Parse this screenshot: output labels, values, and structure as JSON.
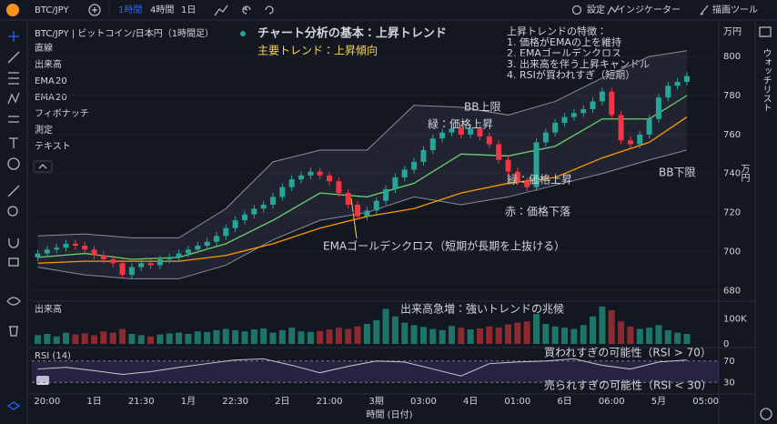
{
  "toolbar": {
    "symbol": "BTC/JPY",
    "intervals": [
      "1時間",
      "4時間",
      "1日"
    ],
    "active_interval": 0,
    "settings": "設定",
    "indicators": "インジケーター",
    "drawing_tools": "描画ツール"
  },
  "sidebar": {
    "title": "ウォッチリスト"
  },
  "object_list": {
    "items_top": [
      "直線",
      "出来高"
    ],
    "ema": [
      {
        "label": "EMA",
        "param": "20",
        "color": "#66d36e"
      },
      {
        "label": "EMA",
        "param": "20",
        "color": "#ff9800"
      }
    ],
    "items_bottom": [
      "フィボナッチ",
      "測定",
      "テキスト"
    ]
  },
  "chart_data": [
    {
      "type": "candlestick",
      "symbol_label": "BTC/JPY | ビットコイン/日本円（1時間足）",
      "title": "チャート分析の基本：上昇トレンド",
      "subtitle": "主要トレンド：上昇傾向",
      "notes": {
        "title": "上昇トレンドの特徴：",
        "items": [
          "1. 価格がEMAの上を維持",
          "2. EMAゴールデンクロス",
          "3. 出来高を伴う上昇キャンドル",
          "4. RSIが買われすぎ（短期）"
        ]
      },
      "categories": [
        null,
        "20:00",
        null,
        null,
        null,
        null,
        "1日",
        null,
        null,
        null,
        null,
        "21:30",
        null,
        null,
        null,
        null,
        "1月",
        null,
        null,
        null,
        null,
        "22:30",
        null,
        null,
        null,
        null,
        "2日",
        null,
        null,
        null,
        null,
        "21:00",
        null,
        null,
        null,
        null,
        "3期",
        null,
        null,
        null,
        null,
        "03:00",
        null,
        null,
        null,
        null,
        "4日",
        null,
        null,
        null,
        null,
        "01:00",
        null,
        null,
        null,
        null,
        "6日",
        null,
        null,
        null,
        null,
        "06:00",
        null,
        null,
        null,
        null,
        "5月",
        null,
        null,
        null,
        null,
        "05:00"
      ],
      "open": [
        697,
        699,
        701,
        702,
        704,
        703,
        701,
        698,
        696,
        694,
        688,
        692,
        694,
        693,
        696,
        697,
        699,
        701,
        703,
        705,
        708,
        712,
        716,
        719,
        722,
        724,
        728,
        733,
        737,
        739,
        741,
        739,
        736,
        730,
        724,
        718,
        721,
        726,
        732,
        738,
        742,
        746,
        752,
        758,
        761,
        763,
        760,
        763,
        759,
        755,
        747,
        741,
        736,
        733,
        756,
        761,
        766,
        769,
        771,
        773,
        777,
        782,
        770,
        757,
        755,
        760,
        768,
        779,
        785,
        787,
        null,
        null
      ],
      "high": [
        701,
        703,
        704,
        706,
        706,
        705,
        703,
        700,
        698,
        696,
        694,
        696,
        696,
        698,
        699,
        701,
        703,
        705,
        707,
        710,
        714,
        718,
        721,
        724,
        726,
        730,
        735,
        739,
        741,
        743,
        743,
        741,
        738,
        732,
        726,
        723,
        728,
        734,
        740,
        744,
        748,
        754,
        760,
        763,
        765,
        765,
        765,
        765,
        761,
        757,
        749,
        743,
        738,
        758,
        763,
        768,
        771,
        773,
        775,
        779,
        784,
        784,
        772,
        759,
        762,
        770,
        781,
        787,
        789,
        792,
        null,
        null
      ],
      "low": [
        695,
        697,
        699,
        700,
        701,
        699,
        696,
        694,
        692,
        686,
        686,
        690,
        691,
        691,
        694,
        695,
        697,
        699,
        701,
        703,
        706,
        710,
        714,
        717,
        720,
        722,
        726,
        731,
        735,
        737,
        737,
        734,
        728,
        722,
        716,
        716,
        719,
        724,
        730,
        736,
        740,
        744,
        750,
        756,
        759,
        758,
        758,
        757,
        753,
        745,
        739,
        734,
        731,
        731,
        754,
        759,
        764,
        767,
        769,
        771,
        775,
        768,
        755,
        753,
        753,
        758,
        766,
        777,
        783,
        785,
        null,
        null
      ],
      "close": [
        699,
        701,
        702,
        704,
        703,
        701,
        698,
        696,
        694,
        688,
        692,
        694,
        693,
        696,
        697,
        699,
        701,
        703,
        705,
        708,
        712,
        716,
        719,
        722,
        724,
        728,
        733,
        737,
        739,
        741,
        739,
        736,
        730,
        724,
        718,
        721,
        726,
        732,
        738,
        742,
        746,
        752,
        758,
        761,
        763,
        760,
        763,
        759,
        755,
        747,
        741,
        736,
        733,
        756,
        761,
        766,
        769,
        771,
        773,
        777,
        782,
        770,
        757,
        755,
        760,
        768,
        779,
        785,
        787,
        790,
        null,
        null
      ],
      "up_color": "#26a69a",
      "down_color": "#f23645",
      "bands": {
        "x": [
          0,
          5,
          10,
          15,
          20,
          25,
          30,
          35,
          40,
          45,
          50,
          55,
          60,
          65,
          69
        ],
        "upper": [
          708,
          709,
          707,
          707,
          722,
          746,
          752,
          752,
          775,
          774,
          770,
          777,
          789,
          800,
          803
        ],
        "lower": [
          692,
          688,
          686,
          686,
          693,
          706,
          716,
          720,
          728,
          724,
          728,
          734,
          740,
          747,
          752
        ],
        "color": "#8a8d96"
      },
      "overlays": [
        {
          "x": [
            0,
            5,
            10,
            15,
            20,
            25,
            30,
            35,
            40,
            45,
            50,
            55,
            60,
            65,
            69
          ],
          "values": [
            697,
            699,
            696,
            697,
            704,
            716,
            730,
            728,
            735,
            750,
            749,
            754,
            768,
            768,
            780
          ],
          "color": "#66d36e"
        },
        {
          "x": [
            0,
            5,
            10,
            15,
            20,
            25,
            30,
            35,
            40,
            45,
            50,
            55,
            60,
            65,
            69
          ],
          "values": [
            694,
            695,
            695,
            695,
            698,
            704,
            712,
            718,
            722,
            730,
            735,
            738,
            748,
            756,
            769
          ],
          "color": "#ff9800"
        }
      ],
      "ylim": [
        675,
        815
      ],
      "yticks": [
        680,
        700,
        720,
        740,
        760,
        780,
        800
      ],
      "ylabel": "万円",
      "xlabel": "時間 (日付)",
      "grid": true,
      "annotations": [
        {
          "text": "BB上限",
          "color": "#e6e6e6"
        },
        {
          "text": "緑：価格上昇",
          "color": "#66d36e"
        },
        {
          "text": "緑：価格上昇",
          "color": "#66d36e"
        },
        {
          "text": "BB下限",
          "color": "#f3e6a0"
        },
        {
          "text": "赤：価格下落",
          "color": "#f23645"
        },
        {
          "text": "EMAゴールデンクロス（短期が長期を上抜ける）",
          "color": "#ffd54f"
        }
      ]
    },
    {
      "type": "bar",
      "title": "出来高",
      "values": [
        35,
        40,
        30,
        45,
        38,
        42,
        35,
        50,
        45,
        60,
        40,
        35,
        30,
        38,
        42,
        45,
        40,
        50,
        48,
        55,
        60,
        55,
        50,
        58,
        62,
        45,
        55,
        65,
        50,
        48,
        52,
        58,
        65,
        60,
        70,
        80,
        95,
        140,
        110,
        85,
        75,
        68,
        60,
        55,
        72,
        65,
        58,
        62,
        70,
        66,
        78,
        85,
        90,
        120,
        80,
        70,
        65,
        60,
        75,
        110,
        150,
        135,
        90,
        70,
        60,
        65,
        75,
        55,
        45,
        40,
        null,
        null
      ],
      "up_color": "#1e7566",
      "down_color": "#8c2a30",
      "ylim": [
        0,
        160
      ],
      "yticks": [
        0,
        {
          "value": 100,
          "label": "100K"
        }
      ],
      "annotations": [
        {
          "text": "出来高急増：強いトレンドの兆候",
          "color": "#ffd54f"
        }
      ]
    },
    {
      "type": "line",
      "title": "RSI (14)",
      "x": [
        0,
        3,
        6,
        9,
        12,
        15,
        18,
        21,
        24,
        27,
        30,
        33,
        36,
        39,
        42,
        45,
        48,
        51,
        54,
        57,
        60,
        63,
        66,
        69
      ],
      "values": [
        55,
        58,
        52,
        45,
        50,
        58,
        65,
        72,
        74,
        62,
        48,
        60,
        70,
        68,
        55,
        42,
        65,
        68,
        70,
        74,
        62,
        55,
        68,
        72
      ],
      "color": "#c9c9d1",
      "band_color": "rgba(126,87,194,0.2)",
      "ylim": [
        10,
        90
      ],
      "yticks": [
        30,
        70
      ],
      "annotations": [
        {
          "text": "買われすぎの可能性（RSI > 70）",
          "color": "#ffd54f"
        },
        {
          "text": "売られすぎの可能性（RSI < 30）",
          "color": "#ffd54f"
        }
      ]
    }
  ]
}
